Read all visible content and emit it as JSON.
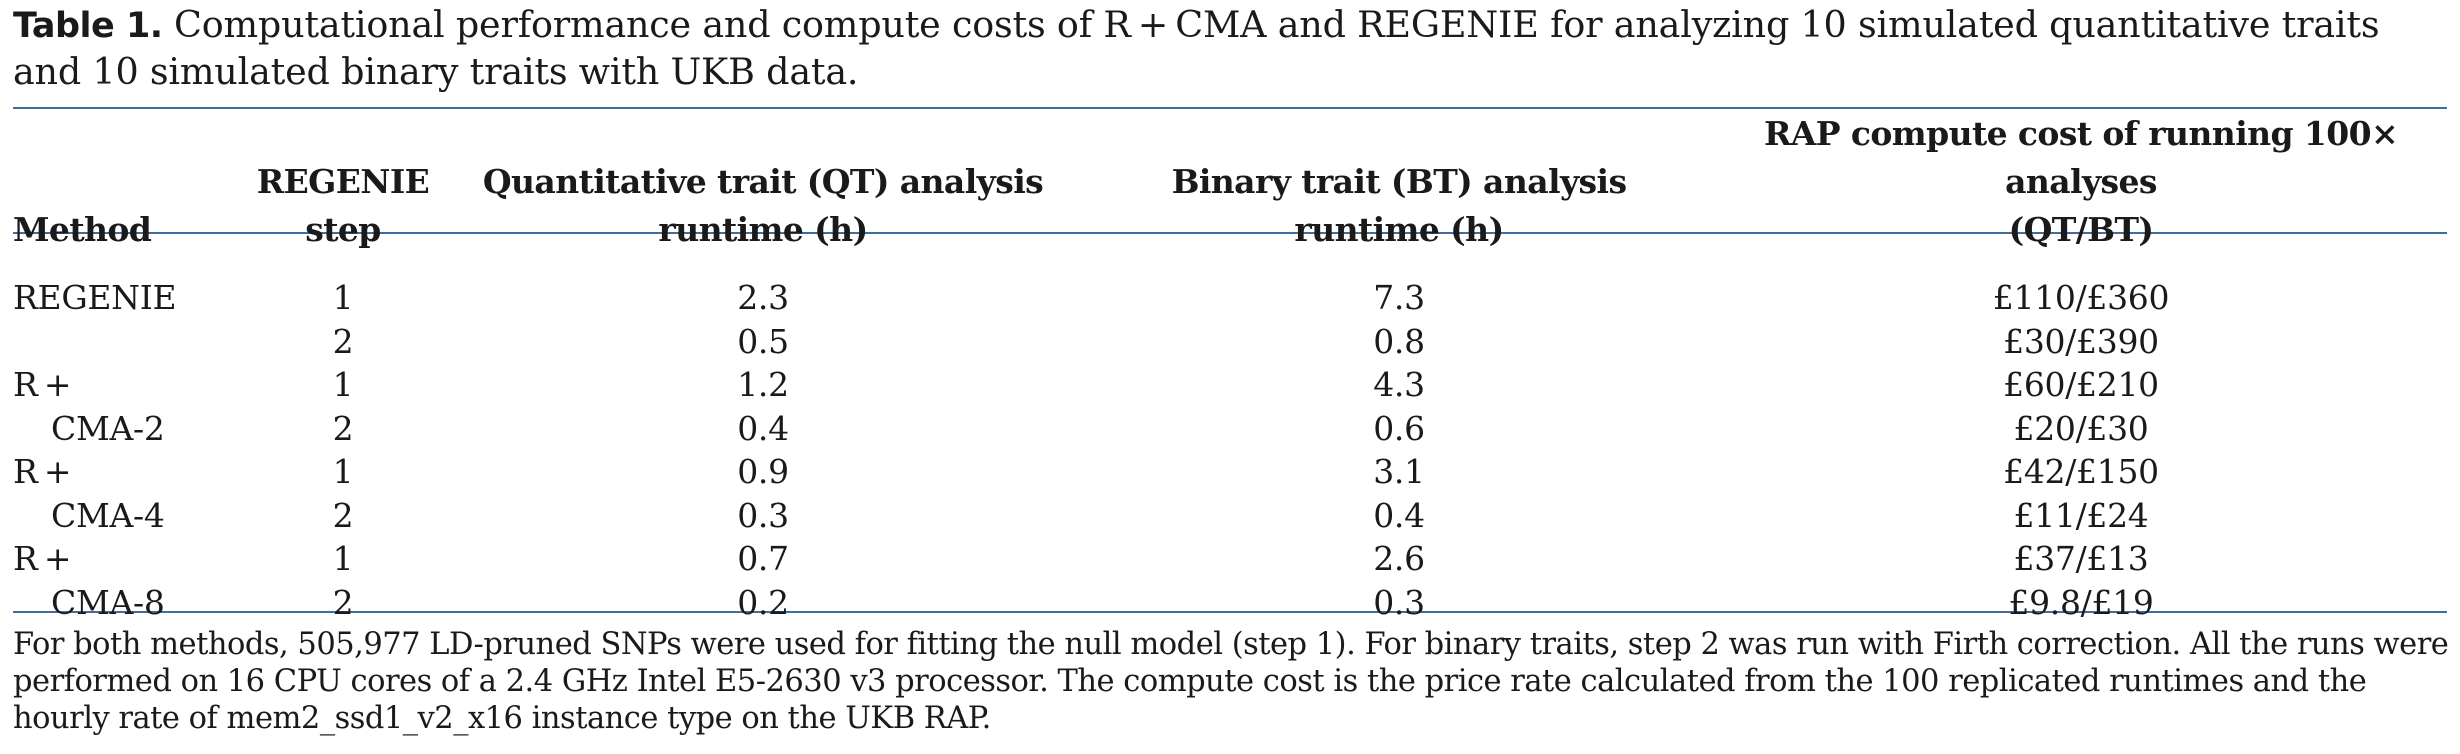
{
  "caption": {
    "label": "Table 1.",
    "text": " Computational performance and compute costs of R + CMA and REGENIE for analyzing 10 simulated quantitative traits and 10 simulated binary traits with UKB data."
  },
  "table": {
    "headers": {
      "method": "Method",
      "step_line1": "REGENIE",
      "step_line2": "step",
      "qt_line1": "Quantitative trait (QT) analysis",
      "qt_line2": "runtime (h)",
      "bt_line1": "Binary trait (BT) analysis",
      "bt_line2": "runtime (h)",
      "cost_line1": "RAP compute cost of running 100× analyses",
      "cost_line2": "(QT/BT)"
    },
    "rows": [
      {
        "method": "REGENIE",
        "step": "1",
        "qt": "2.3",
        "bt": "7.3",
        "cost": "£110/£360"
      },
      {
        "method": "",
        "step": "2",
        "qt": "0.5",
        "bt": "0.8",
        "cost": "£30/£390"
      },
      {
        "method": "R +",
        "step": "1",
        "qt": "1.2",
        "bt": "4.3",
        "cost": "£60/£210"
      },
      {
        "method": "CMA-2",
        "step": "2",
        "qt": "0.4",
        "bt": "0.6",
        "cost": "£20/£30"
      },
      {
        "method": "R +",
        "step": "1",
        "qt": "0.9",
        "bt": "3.1",
        "cost": "£42/£150"
      },
      {
        "method": "CMA-4",
        "step": "2",
        "qt": "0.3",
        "bt": "0.4",
        "cost": "£11/£24"
      },
      {
        "method": "R +",
        "step": "1",
        "qt": "0.7",
        "bt": "2.6",
        "cost": "£37/£13"
      },
      {
        "method": "CMA-8",
        "step": "2",
        "qt": "0.2",
        "bt": "0.3",
        "cost": "£9.8/£19"
      }
    ]
  },
  "footnote": "For both methods, 505,977 LD-pruned SNPs were used for fitting the null model (step 1). For binary traits, step 2 was run with Firth correction. All the runs were performed on 16 CPU cores of a 2.4 GHz Intel E5-2630 v3 processor. The compute cost is the price rate calculated from the 100 replicated runtimes and the hourly rate of mem2_ssd1_v2_x16 instance type on the UKB RAP.",
  "colors": {
    "rule": "#3d6e9e",
    "text": "#1a1a1a"
  }
}
